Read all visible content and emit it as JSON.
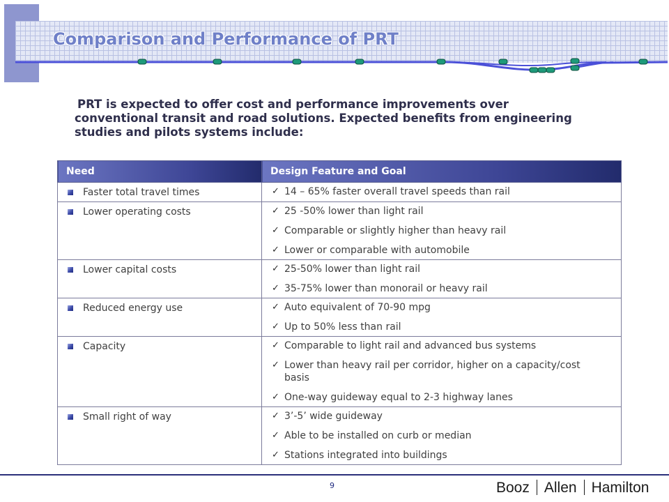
{
  "header": {
    "title": "Comparison and Performance of PRT"
  },
  "intro": "PRT is expected to offer cost and performance improvements over conventional transit and road solutions.   Expected benefits from engineering studies and pilots systems include:",
  "table": {
    "columns": [
      "Need",
      "Design Feature and Goal"
    ],
    "rows": [
      {
        "need": "Faster total travel times",
        "goals": [
          "14 – 65% faster overall travel speeds than rail"
        ]
      },
      {
        "need": "Lower operating costs",
        "goals": [
          "25 -50% lower than light rail",
          "Comparable or slightly higher than heavy rail",
          "Lower or comparable with automobile"
        ]
      },
      {
        "need": "Lower capital costs",
        "goals": [
          "25-50% lower than light rail",
          "35-75% lower than monorail or heavy rail"
        ]
      },
      {
        "need": "Reduced energy use",
        "goals": [
          "Auto equivalent of 70-90 mpg",
          "Up to 50% less than rail"
        ]
      },
      {
        "need": "Capacity",
        "goals": [
          "Comparable to light rail and advanced bus systems",
          "Lower than heavy rail per corridor, higher on a capacity/cost basis",
          "One-way guideway equal to 2-3 highway lanes"
        ]
      },
      {
        "need": "Small right of way",
        "goals": [
          "3’-5’ wide guideway",
          "Able to be installed on curb or median",
          "Stations integrated into buildings"
        ]
      }
    ]
  },
  "footer": {
    "page_number": "9",
    "logo_parts": [
      "Booz",
      "Allen",
      "Hamilton"
    ]
  },
  "icons": {
    "need_bullet": "square-bullet-icon",
    "goal_bullet": "checkmark-icon"
  },
  "colors": {
    "banner": "#8e96cf",
    "title": "#6f80c8",
    "header_dark": "#222b6c",
    "rule": "#2a2f7a"
  }
}
